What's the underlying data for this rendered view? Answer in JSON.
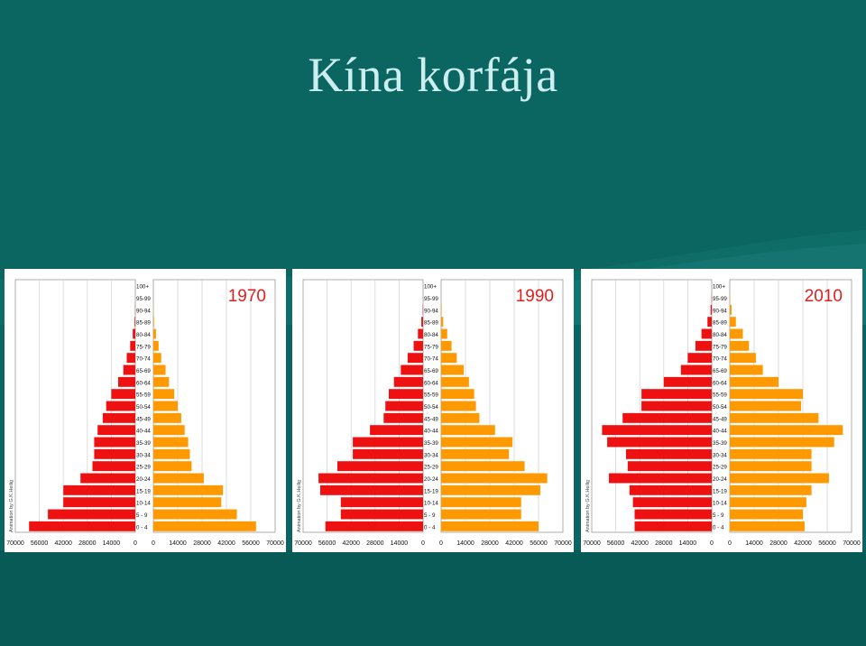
{
  "slide": {
    "title": "Kína korfája",
    "colors": {
      "background": "#0b6560",
      "title": "#cdeef0",
      "male": "#ee1111",
      "female": "#ff9900",
      "year": "#e02020"
    }
  },
  "chart_data": [
    {
      "type": "bar",
      "orientation": "horizontal-population-pyramid",
      "title": "1970",
      "credit": "Animation by G.K.Heilig",
      "categories": [
        "0 - 4",
        "5 - 9",
        "10-14",
        "15-19",
        "20-24",
        "25-29",
        "30-34",
        "35-39",
        "40-44",
        "45-49",
        "50-54",
        "55-59",
        "60-64",
        "65-69",
        "70-74",
        "75-79",
        "80-84",
        "85-89",
        "90-94",
        "95-99",
        "100+"
      ],
      "left_tick_labels": [
        "70000",
        "56000",
        "42000",
        "28000",
        "14000",
        "0"
      ],
      "right_tick_labels": [
        "0",
        "14000",
        "28000",
        "42000",
        "56000",
        "70000"
      ],
      "xlim": [
        0,
        70000
      ],
      "series": [
        {
          "side": "left",
          "values": [
            62000,
            51000,
            42000,
            42000,
            32000,
            25000,
            24000,
            24000,
            22000,
            19000,
            17000,
            14000,
            10000,
            7000,
            5000,
            3000,
            1500,
            400,
            100,
            0,
            0
          ]
        },
        {
          "side": "right",
          "values": [
            59000,
            48000,
            39000,
            40000,
            29000,
            22000,
            21000,
            20000,
            18000,
            16000,
            14000,
            12000,
            9000,
            7000,
            4500,
            3000,
            1500,
            400,
            100,
            0,
            0
          ]
        }
      ]
    },
    {
      "type": "bar",
      "orientation": "horizontal-population-pyramid",
      "title": "1990",
      "credit": "Animation by G.K.Heilig",
      "categories": [
        "0 - 4",
        "5 - 9",
        "10-14",
        "15-19",
        "20-24",
        "25-29",
        "30-34",
        "35-39",
        "40-44",
        "45-49",
        "50-54",
        "55-59",
        "60-64",
        "65-69",
        "70-74",
        "75-79",
        "80-84",
        "85-89",
        "90-94",
        "95-99",
        "100+"
      ],
      "left_tick_labels": [
        "70000",
        "56000",
        "42000",
        "28000",
        "14000",
        "0"
      ],
      "right_tick_labels": [
        "0",
        "14000",
        "28000",
        "42000",
        "56000",
        "70000"
      ],
      "xlim": [
        0,
        70000
      ],
      "series": [
        {
          "side": "left",
          "values": [
            57000,
            48000,
            48000,
            60000,
            61000,
            50000,
            41000,
            41000,
            31000,
            23000,
            22000,
            20000,
            17000,
            13000,
            9000,
            5500,
            3000,
            1000,
            200,
            0,
            0
          ]
        },
        {
          "side": "right",
          "values": [
            56000,
            46000,
            46000,
            57000,
            61000,
            48000,
            39000,
            41000,
            31000,
            22000,
            20000,
            19000,
            16000,
            13000,
            9000,
            6000,
            3500,
            1200,
            300,
            0,
            0
          ]
        }
      ]
    },
    {
      "type": "bar",
      "orientation": "horizontal-population-pyramid",
      "title": "2010",
      "credit": "Animation by G.K.Heilig",
      "categories": [
        "0 - 4",
        "5 - 9",
        "10-14",
        "15-19",
        "20-24",
        "25-29",
        "30-34",
        "35-39",
        "40-44",
        "45-49",
        "50-54",
        "55-59",
        "60-64",
        "65-69",
        "70-74",
        "75-79",
        "80-84",
        "85-89",
        "90-94",
        "95-99",
        "100+"
      ],
      "left_tick_labels": [
        "70000",
        "56000",
        "42000",
        "28000",
        "14000",
        "0"
      ],
      "right_tick_labels": [
        "0",
        "14000",
        "28000",
        "42000",
        "56000",
        "70000"
      ],
      "xlim": [
        0,
        70000
      ],
      "series": [
        {
          "side": "left",
          "values": [
            45000,
            45000,
            46000,
            48000,
            60000,
            49000,
            50000,
            61000,
            64000,
            52000,
            41000,
            41000,
            28000,
            18000,
            14000,
            9500,
            6000,
            2500,
            700,
            100,
            0
          ]
        },
        {
          "side": "right",
          "values": [
            43000,
            42000,
            44000,
            47000,
            57000,
            47000,
            47000,
            60000,
            65000,
            51000,
            41000,
            42000,
            28000,
            19000,
            15000,
            11000,
            7500,
            3500,
            1000,
            200,
            0
          ]
        }
      ]
    }
  ]
}
